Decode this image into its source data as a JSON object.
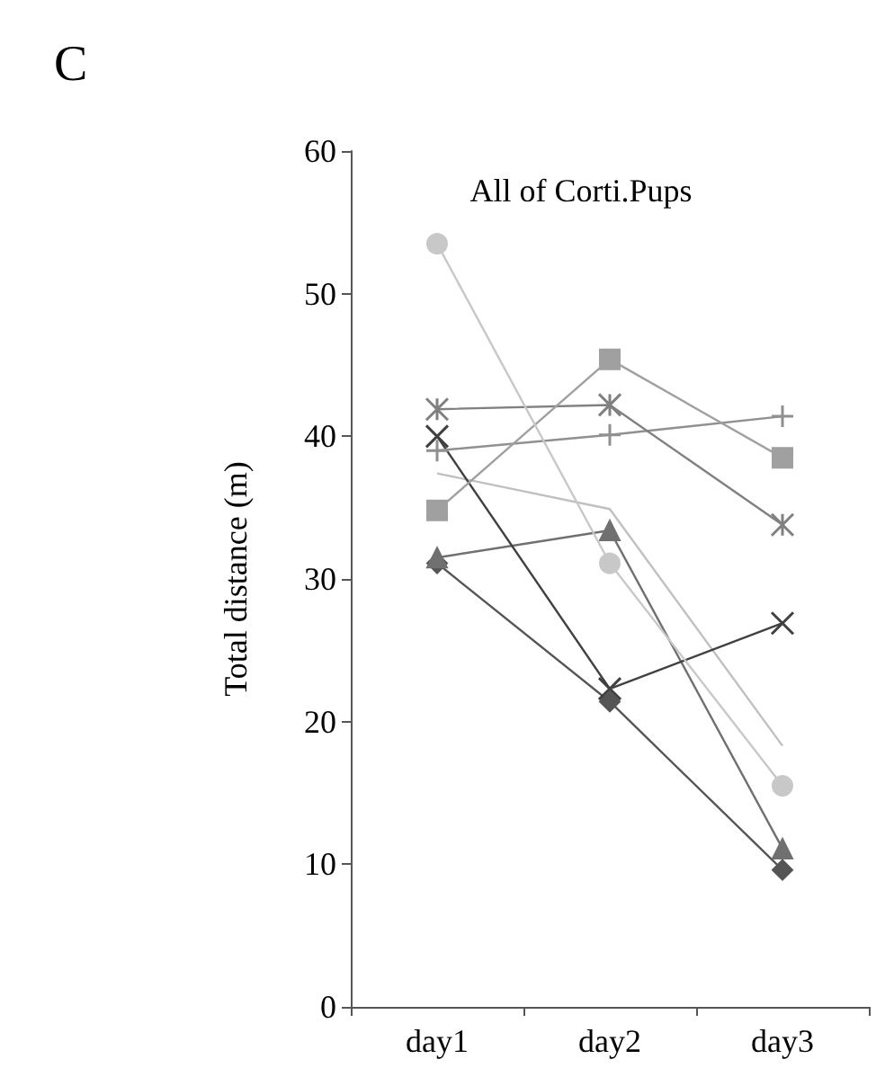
{
  "chart_data": {
    "type": "line",
    "title": "All of Corti.Pups",
    "ylabel": "Total distance (m)",
    "annotations": [
      "C"
    ],
    "categories": [
      "day1",
      "day2",
      "day3"
    ],
    "ylim": [
      0,
      60
    ],
    "yticks": [
      0,
      10,
      20,
      30,
      40,
      50,
      60
    ],
    "grid": false,
    "series": [
      {
        "color": "#c8c8c8",
        "marker": "circle",
        "values": [
          53.5,
          31.1,
          15.5
        ]
      },
      {
        "color": "#a0a0a0",
        "marker": "square",
        "values": [
          34.8,
          45.4,
          38.5
        ]
      },
      {
        "color": "#808080",
        "marker": "cross",
        "values": [
          41.9,
          42.2,
          33.8
        ]
      },
      {
        "color": "#909090",
        "marker": "plus",
        "values": [
          39.0,
          40.1,
          41.4
        ]
      },
      {
        "color": "#404040",
        "marker": "x",
        "values": [
          40.0,
          22.3,
          26.9
        ]
      },
      {
        "color": "#c0c0c0",
        "marker": "none",
        "values": [
          37.4,
          34.9,
          18.3
        ]
      },
      {
        "color": "#707070",
        "marker": "triangle",
        "values": [
          31.5,
          33.4,
          11.1
        ]
      },
      {
        "color": "#555555",
        "marker": "diamond",
        "values": [
          31.1,
          21.4,
          9.6
        ]
      }
    ]
  }
}
